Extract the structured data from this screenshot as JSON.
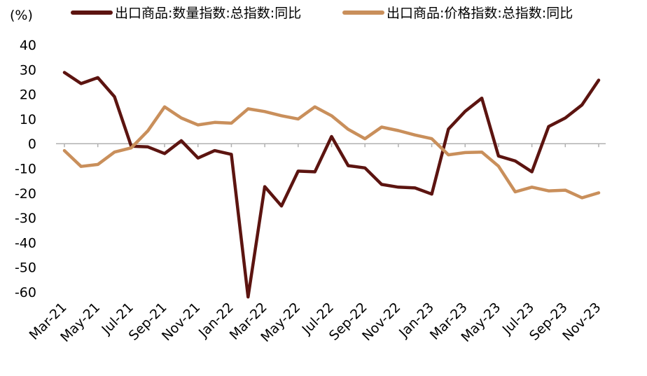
{
  "chart_data": {
    "type": "line",
    "ylabel": "(%)",
    "ylim": [
      -60,
      40
    ],
    "yticks": [
      40,
      30,
      20,
      10,
      0,
      -10,
      -20,
      -30,
      -40,
      -50,
      -60
    ],
    "legend_position": "top",
    "grid": false,
    "x": [
      "Mar-21",
      "Apr-21",
      "May-21",
      "Jun-21",
      "Jul-21",
      "Aug-21",
      "Sep-21",
      "Oct-21",
      "Nov-21",
      "Dec-21",
      "Jan-22",
      "Feb-22",
      "Mar-22",
      "Apr-22",
      "May-22",
      "Jun-22",
      "Jul-22",
      "Aug-22",
      "Sep-22",
      "Oct-22",
      "Nov-22",
      "Dec-22",
      "Jan-23",
      "Feb-23",
      "Mar-23",
      "Apr-23",
      "May-23",
      "Jun-23",
      "Jul-23",
      "Aug-23",
      "Sep-23",
      "Oct-23",
      "Nov-23"
    ],
    "xtick_labels": [
      "Mar-21",
      "May-21",
      "Jul-21",
      "Sep-21",
      "Nov-21",
      "Jan-22",
      "Mar-22",
      "May-22",
      "Jul-22",
      "Sep-22",
      "Nov-22",
      "Jan-23",
      "Mar-23",
      "May-23",
      "Jul-23",
      "Sep-23",
      "Nov-23"
    ],
    "series": [
      {
        "name": "出口商品:数量指数:总指数:同比",
        "color": "#5c1410",
        "values": [
          28.8,
          24.3,
          26.7,
          19.0,
          -1.0,
          -1.3,
          -4.0,
          1.2,
          -5.8,
          -2.8,
          -4.3,
          -62.0,
          -17.4,
          -25.2,
          -11.1,
          -11.4,
          2.9,
          -8.9,
          -9.8,
          -16.5,
          -17.6,
          -17.9,
          -20.4,
          5.9,
          13.1,
          18.4,
          -5.0,
          -7.0,
          -11.4,
          6.9,
          10.4,
          15.7,
          25.7
        ]
      },
      {
        "name": "出口商品:价格指数:总指数:同比",
        "color": "#c98f5b",
        "values": [
          -2.8,
          -9.2,
          -8.4,
          -3.4,
          -1.7,
          5.2,
          14.9,
          10.4,
          7.6,
          8.6,
          8.3,
          14.1,
          13.0,
          11.3,
          10.0,
          14.9,
          11.3,
          5.8,
          2.0,
          6.7,
          5.3,
          3.5,
          2.0,
          -4.5,
          -3.6,
          -3.4,
          -9.1,
          -19.5,
          -17.6,
          -19.1,
          -18.8,
          -21.9,
          -19.9
        ]
      }
    ]
  }
}
